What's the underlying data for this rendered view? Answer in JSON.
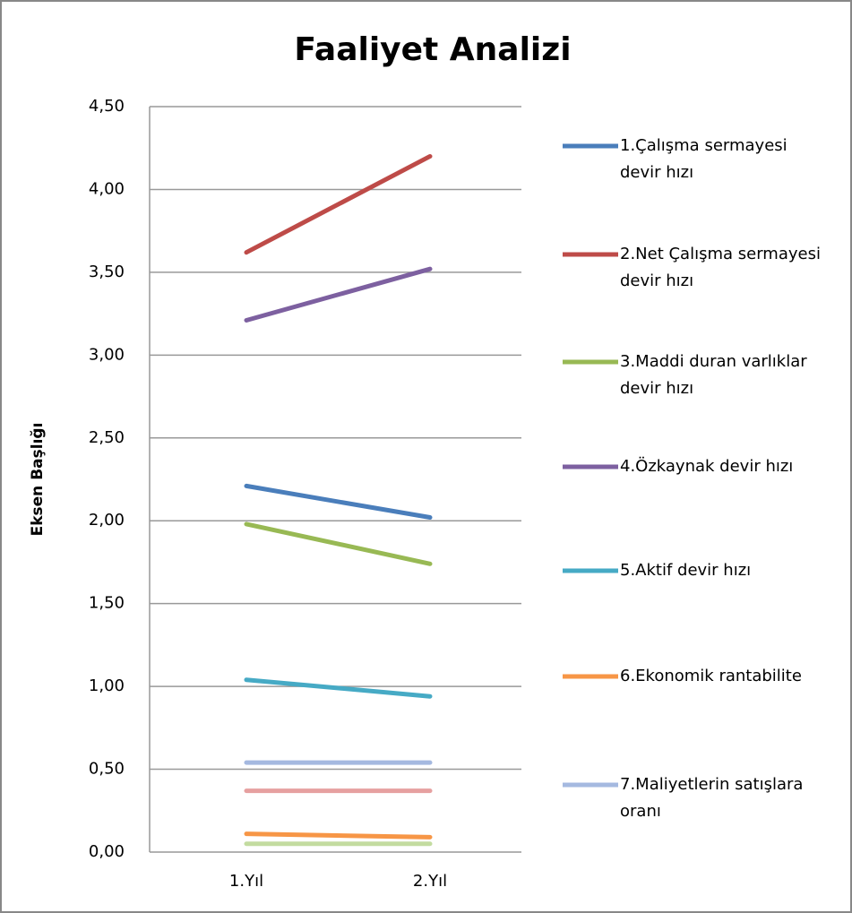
{
  "chart_data": {
    "type": "line",
    "title": "Faaliyet Analizi",
    "y_label": "Eksen Başlığı",
    "categories": [
      "1.Yıl",
      "2.Yıl"
    ],
    "ylim": [
      0,
      4.5
    ],
    "yticks": [
      {
        "value": 0,
        "label": "0,00"
      },
      {
        "value": 0.5,
        "label": "0,50"
      },
      {
        "value": 1,
        "label": "1,00"
      },
      {
        "value": 1.5,
        "label": "1,50"
      },
      {
        "value": 2,
        "label": "2,00"
      },
      {
        "value": 2.5,
        "label": "2,50"
      },
      {
        "value": 3,
        "label": "3,00"
      },
      {
        "value": 3.5,
        "label": "3,50"
      },
      {
        "value": 4,
        "label": "4,00"
      },
      {
        "value": 4.5,
        "label": "4,50"
      }
    ],
    "grid": true,
    "legend": "right",
    "series": [
      {
        "name": "1.Çalışma sermayesi devir hızı",
        "color": "#4a7ebb",
        "values": [
          2.21,
          2.02
        ]
      },
      {
        "name": "2.Net Çalışma sermayesi devir hızı",
        "color": "#be4b48",
        "values": [
          3.62,
          4.2
        ]
      },
      {
        "name": "3.Maddi duran varlıklar devir hızı",
        "color": "#98b954",
        "values": [
          1.98,
          1.74
        ]
      },
      {
        "name": "4.Özkaynak devir hızı",
        "color": "#7d60a0",
        "values": [
          3.21,
          3.52
        ]
      },
      {
        "name": "5.Aktif devir hızı",
        "color": "#46aac5",
        "values": [
          1.04,
          0.94
        ]
      },
      {
        "name": "6.Ekonomik rantabilite",
        "color": "#f79646",
        "values": [
          0.11,
          0.09
        ]
      },
      {
        "name": "7.Maliyetlerin satışlara oranı",
        "color": "#a5b9e0",
        "values": [
          0.54,
          0.54
        ]
      },
      {
        "color": "#e6a0a0",
        "values": [
          0.37,
          0.37
        ]
      },
      {
        "color": "#c3dca0",
        "values": [
          0.05,
          0.05
        ]
      }
    ]
  }
}
